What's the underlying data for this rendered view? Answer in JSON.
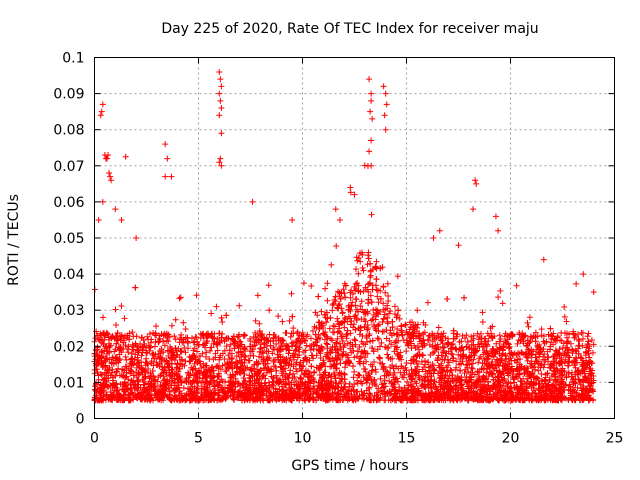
{
  "chart_data": {
    "type": "scatter",
    "title": "Day 225 of 2020, Rate Of TEC Index for receiver maju",
    "xlabel": "GPS time / hours",
    "ylabel": "ROTI / TECUs",
    "xlim": [
      0,
      25
    ],
    "ylim": [
      0,
      0.1
    ],
    "xticks": [
      "0",
      "5",
      "10",
      "15",
      "20",
      "25"
    ],
    "yticks": [
      "0",
      "0.01",
      "0.02",
      "0.03",
      "0.04",
      "0.05",
      "0.06",
      "0.07",
      "0.08",
      "0.09",
      "0.1"
    ],
    "grid": true,
    "marker": "+",
    "color": "#ff0000",
    "coverage_hours": [
      0,
      24
    ],
    "typical_range": [
      0.005,
      0.03
    ],
    "series": [
      {
        "x": [
          0.3,
          0.35,
          0.4,
          0.5,
          0.55,
          0.6,
          0.65,
          0.7,
          0.75,
          0.8,
          1.5,
          3.4,
          3.5,
          3.4,
          3.7,
          6.0,
          6.05,
          6.1,
          6.0,
          6.05,
          6.1,
          6.0,
          6.1,
          6.05,
          6.0,
          6.1,
          13.2,
          13.3,
          13.3,
          13.25,
          13.35,
          13.3,
          13.2,
          13.3,
          13.9,
          14.0,
          14.05,
          13.95,
          14.0,
          12.3,
          12.5,
          18.3,
          18.35,
          18.2,
          19.3,
          19.4,
          0.2,
          0.4,
          1.0,
          1.3,
          2.0,
          7.6,
          9.5,
          11.6,
          11.8,
          16.3,
          16.6,
          17.5,
          21.6,
          23.5,
          24.0
        ],
        "y": [
          0.084,
          0.085,
          0.087,
          0.073,
          0.072,
          0.072,
          0.073,
          0.068,
          0.067,
          0.066,
          0.0725,
          0.076,
          0.072,
          0.067,
          0.067,
          0.096,
          0.094,
          0.092,
          0.09,
          0.088,
          0.086,
          0.084,
          0.079,
          0.072,
          0.071,
          0.07,
          0.094,
          0.09,
          0.088,
          0.085,
          0.083,
          0.077,
          0.074,
          0.07,
          0.092,
          0.09,
          0.087,
          0.084,
          0.08,
          0.064,
          0.062,
          0.066,
          0.065,
          0.058,
          0.056,
          0.052,
          0.055,
          0.06,
          0.058,
          0.055,
          0.05,
          0.06,
          0.055,
          0.058,
          0.055,
          0.05,
          0.052,
          0.048,
          0.044,
          0.04,
          0.035
        ]
      }
    ]
  }
}
